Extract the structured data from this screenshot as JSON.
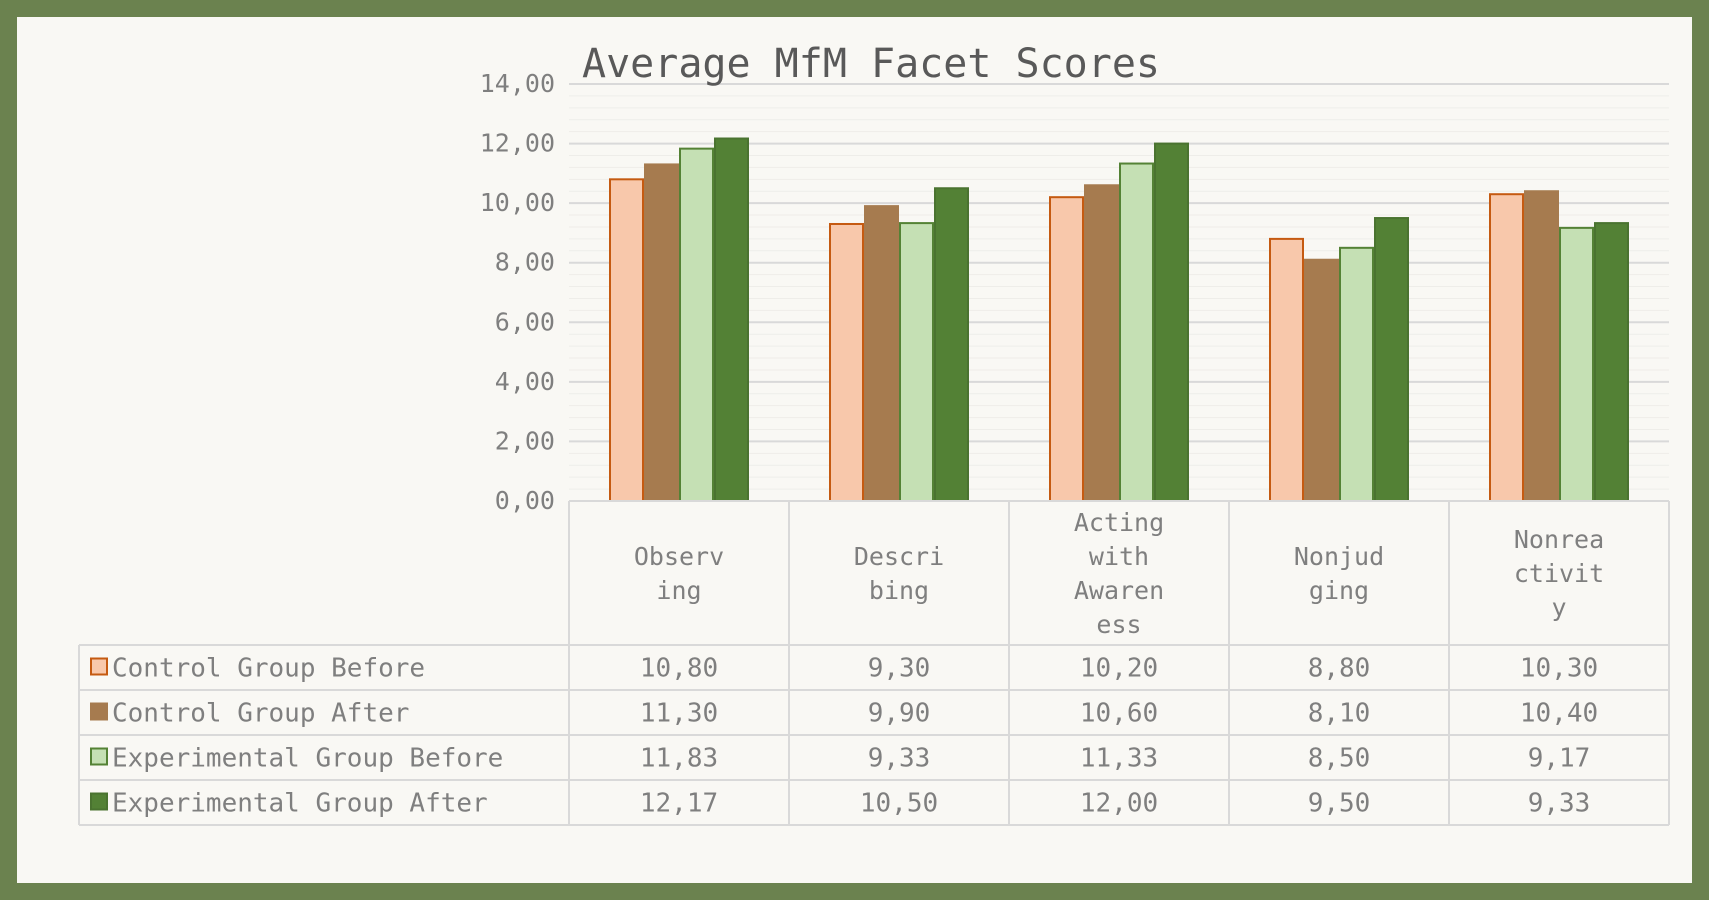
{
  "chart_data": {
    "type": "bar",
    "title": "Average MfM Facet Scores",
    "categories": [
      "Observ\ning",
      "Descri\nbing",
      "Acting\nwith\nAwaren\ness",
      "Nonjud\nging",
      "Nonrea\nctivit\ny"
    ],
    "series": [
      {
        "name": "Control Group Before",
        "values": [
          10.8,
          9.3,
          10.2,
          8.8,
          10.3
        ],
        "labels": [
          "10,80",
          "9,30",
          "10,20",
          "8,80",
          "10,30"
        ],
        "fill": "#f8c8ab",
        "stroke": "#c55a11"
      },
      {
        "name": "Control Group After",
        "values": [
          11.3,
          9.9,
          10.6,
          8.1,
          10.4
        ],
        "labels": [
          "11,30",
          "9,90",
          "10,60",
          "8,10",
          "10,40"
        ],
        "fill": "#a67b4f",
        "stroke": "#a67b4f"
      },
      {
        "name": "Experimental Group Before",
        "values": [
          11.83,
          9.33,
          11.33,
          8.5,
          9.17
        ],
        "labels": [
          "11,83",
          "9,33",
          "11,33",
          "8,50",
          "9,17"
        ],
        "fill": "#c5e0b4",
        "stroke": "#548235"
      },
      {
        "name": "Experimental Group After",
        "values": [
          12.17,
          10.5,
          12.0,
          9.5,
          9.33
        ],
        "labels": [
          "12,17",
          "10,50",
          "12,00",
          "9,50",
          "9,33"
        ],
        "fill": "#538135",
        "stroke": "#4a7330"
      }
    ],
    "ylim": [
      0,
      14
    ],
    "yticks": [
      0,
      2,
      4,
      6,
      8,
      10,
      12,
      14
    ],
    "ytick_labels": [
      "0,00",
      "2,00",
      "4,00",
      "6,00",
      "8,00",
      "10,00",
      "12,00",
      "14,00"
    ],
    "grid": true,
    "minor_grid": true,
    "legend": "data-table"
  }
}
